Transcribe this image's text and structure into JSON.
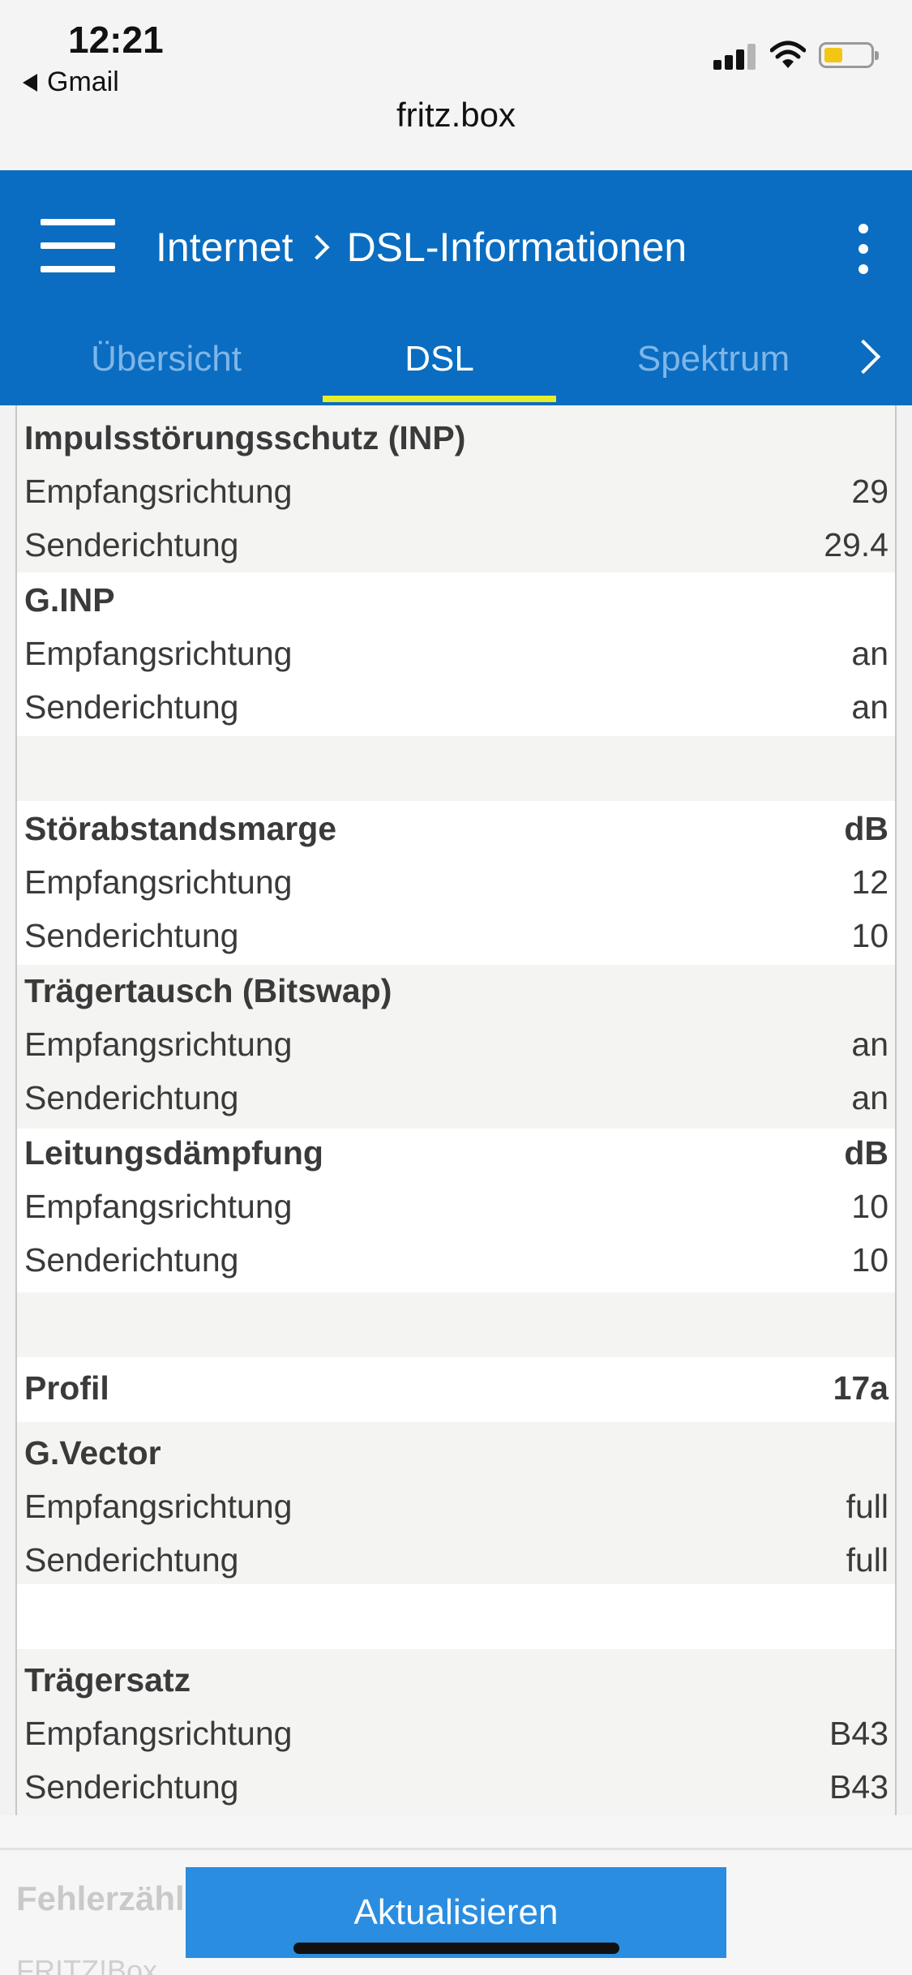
{
  "status_bar": {
    "time": "12:21",
    "back_app": "Gmail"
  },
  "browser": {
    "url": "fritz.box"
  },
  "header": {
    "breadcrumb": [
      "Internet",
      "DSL-Informationen"
    ],
    "tabs": [
      {
        "label": "Übersicht",
        "active": false
      },
      {
        "label": "DSL",
        "active": true
      },
      {
        "label": "Spektrum",
        "active": false
      }
    ]
  },
  "table": {
    "rows": [
      {
        "label": "Impulsstörungsschutz (INP)",
        "value": "",
        "bold": true
      },
      {
        "label": "Empfangsrichtung",
        "value": "29",
        "bold": false
      },
      {
        "label": "Senderichtung",
        "value": "29.4",
        "bold": false
      },
      {
        "label": "G.INP",
        "value": "",
        "bold": true
      },
      {
        "label": "Empfangsrichtung",
        "value": "an",
        "bold": false
      },
      {
        "label": "Senderichtung",
        "value": "an",
        "bold": false
      },
      {
        "label": "Störabstandsmarge",
        "value": "dB",
        "bold": true
      },
      {
        "label": "Empfangsrichtung",
        "value": "12",
        "bold": false
      },
      {
        "label": "Senderichtung",
        "value": "10",
        "bold": false
      },
      {
        "label": "Trägertausch (Bitswap)",
        "value": "",
        "bold": true
      },
      {
        "label": "Empfangsrichtung",
        "value": "an",
        "bold": false
      },
      {
        "label": "Senderichtung",
        "value": "an",
        "bold": false
      },
      {
        "label": "Leitungsdämpfung",
        "value": "dB",
        "bold": true
      },
      {
        "label": "Empfangsrichtung",
        "value": "10",
        "bold": false
      },
      {
        "label": "Senderichtung",
        "value": "10",
        "bold": false
      },
      {
        "label": "Profil",
        "value": "17a",
        "bold": true
      },
      {
        "label": "G.Vector",
        "value": "",
        "bold": true
      },
      {
        "label": "Empfangsrichtung",
        "value": "full",
        "bold": false
      },
      {
        "label": "Senderichtung",
        "value": "full",
        "bold": false
      },
      {
        "label": "Trägersatz",
        "value": "",
        "bold": true
      },
      {
        "label": "Empfangsrichtung",
        "value": "B43",
        "bold": false
      },
      {
        "label": "Senderichtung",
        "value": "B43",
        "bold": false
      }
    ]
  },
  "footer": {
    "section_title": "Fehlerzähl",
    "section_subtitle": "FRITZ!Box",
    "refresh_label": "Aktualisieren"
  }
}
